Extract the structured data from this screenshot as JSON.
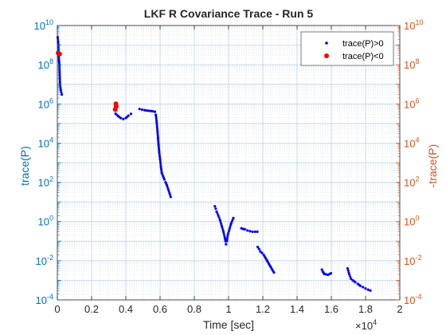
{
  "chart_data": {
    "type": "scatter",
    "title": "LKF R Covariance Trace - Run 5",
    "xlabel": "Time [sec]",
    "ylabel_left": "trace(P)",
    "ylabel_right": "-trace(P)",
    "x_multiplier": "×10",
    "x_multiplier_exp": "4",
    "xlim": [
      0,
      20000
    ],
    "ylim": [
      0.0001,
      10000000000
    ],
    "yscale": "log",
    "grid": true,
    "legend_position": "top-right",
    "x_tick_labels": [
      "0",
      "0.2",
      "0.4",
      "0.6",
      "0.8",
      "1",
      "1.2",
      "1.4",
      "1.6",
      "1.8",
      "2"
    ],
    "y_tick_base": "10",
    "y_tick_exponents": [
      "-4",
      "-2",
      "0",
      "2",
      "4",
      "6",
      "8",
      "10"
    ],
    "colors": {
      "left_axis": "#0072bd",
      "right_axis": "#d95319",
      "series_pos": "#0000ff",
      "series_neg": "#ff0000"
    },
    "series": [
      {
        "name": "trace(P)>0",
        "color": "#0000ff",
        "marker": "dot",
        "segments": [
          [
            [
              20,
              2500000000.0
            ],
            [
              40,
              1600000000.0
            ],
            [
              60,
              900000000.0
            ],
            [
              80,
              400000000.0
            ],
            [
              100,
              150000000.0
            ],
            [
              120,
              100000000.0
            ],
            [
              150,
              12000000.0
            ],
            [
              200,
              5000000.0
            ],
            [
              260,
              3000000.0
            ]
          ],
          [
            [
              3400,
              320000.0
            ],
            [
              3550,
              240000.0
            ],
            [
              3700,
              190000.0
            ],
            [
              3850,
              170000.0
            ],
            [
              4000,
              190000.0
            ],
            [
              4150,
              250000.0
            ],
            [
              4300,
              310000.0
            ]
          ],
          [
            [
              4800,
              550000.0
            ],
            [
              4950,
              510000.0
            ],
            [
              5100,
              480000.0
            ],
            [
              5300,
              450000.0
            ],
            [
              5500,
              430000.0
            ],
            [
              5700,
              400000.0
            ],
            [
              5750,
              280000.0
            ],
            [
              5800,
              120000.0
            ],
            [
              5850,
              40000.0
            ],
            [
              5880,
              18000.0
            ],
            [
              5910,
              8000.0
            ],
            [
              5950,
              3500.0
            ],
            [
              6000,
              1500.0
            ],
            [
              6050,
              600
            ],
            [
              6100,
              300
            ],
            [
              6180,
              200
            ],
            [
              6250,
              140
            ],
            [
              6320,
              100
            ],
            [
              6400,
              70
            ],
            [
              6470,
              45
            ],
            [
              6550,
              28
            ],
            [
              6620,
              18
            ]
          ],
          [
            [
              9200,
              6
            ],
            [
              9250,
              4.5
            ],
            [
              9300,
              3.2
            ],
            [
              9400,
              2
            ],
            [
              9500,
              1.2
            ],
            [
              9600,
              0.6
            ],
            [
              9700,
              0.3
            ],
            [
              9780,
              0.15
            ],
            [
              9820,
              0.1
            ],
            [
              9850,
              0.07
            ],
            [
              9900,
              0.1
            ],
            [
              9950,
              0.2
            ],
            [
              10050,
              0.4
            ],
            [
              10150,
              0.8
            ],
            [
              10280,
              1.5
            ]
          ],
          [
            [
              10750,
              0.45
            ],
            [
              10850,
              0.42
            ],
            [
              10950,
              0.4
            ],
            [
              11100,
              0.35
            ],
            [
              11250,
              0.32
            ],
            [
              11400,
              0.3
            ],
            [
              11550,
              0.3
            ],
            [
              11680,
              0.3
            ]
          ],
          [
            [
              11700,
              0.05
            ],
            [
              11780,
              0.04
            ],
            [
              11850,
              0.03
            ],
            [
              11950,
              0.025
            ],
            [
              12050,
              0.02
            ],
            [
              12150,
              0.014
            ],
            [
              12250,
              0.01
            ],
            [
              12350,
              0.007
            ],
            [
              12450,
              0.005
            ],
            [
              12550,
              0.0035
            ],
            [
              12650,
              0.0025
            ]
          ],
          [
            [
              15450,
              0.0035
            ],
            [
              15500,
              0.0028
            ],
            [
              15550,
              0.0024
            ],
            [
              15600,
              0.0021
            ],
            [
              15700,
              0.002
            ],
            [
              15800,
              0.0019
            ],
            [
              15900,
              0.0021
            ],
            [
              15980,
              0.0023
            ]
          ],
          [
            [
              16950,
              0.004
            ],
            [
              17050,
              0.002
            ],
            [
              17150,
              0.0012
            ],
            [
              17250,
              0.001
            ],
            [
              17400,
              0.0008
            ],
            [
              17550,
              0.00065
            ],
            [
              17700,
              0.00052
            ],
            [
              17850,
              0.00045
            ],
            [
              18000,
              0.00038
            ],
            [
              18150,
              0.00033
            ],
            [
              18280,
              0.0003
            ]
          ]
        ]
      },
      {
        "name": "trace(P)<0",
        "color": "#ff0000",
        "marker": "circle",
        "points": [
          [
            50,
            400000000.0
          ],
          [
            130,
            350000000.0
          ],
          [
            3420,
            1000000.0
          ],
          [
            3440,
            750000.0
          ],
          [
            3380,
            520000.0
          ]
        ]
      }
    ]
  }
}
